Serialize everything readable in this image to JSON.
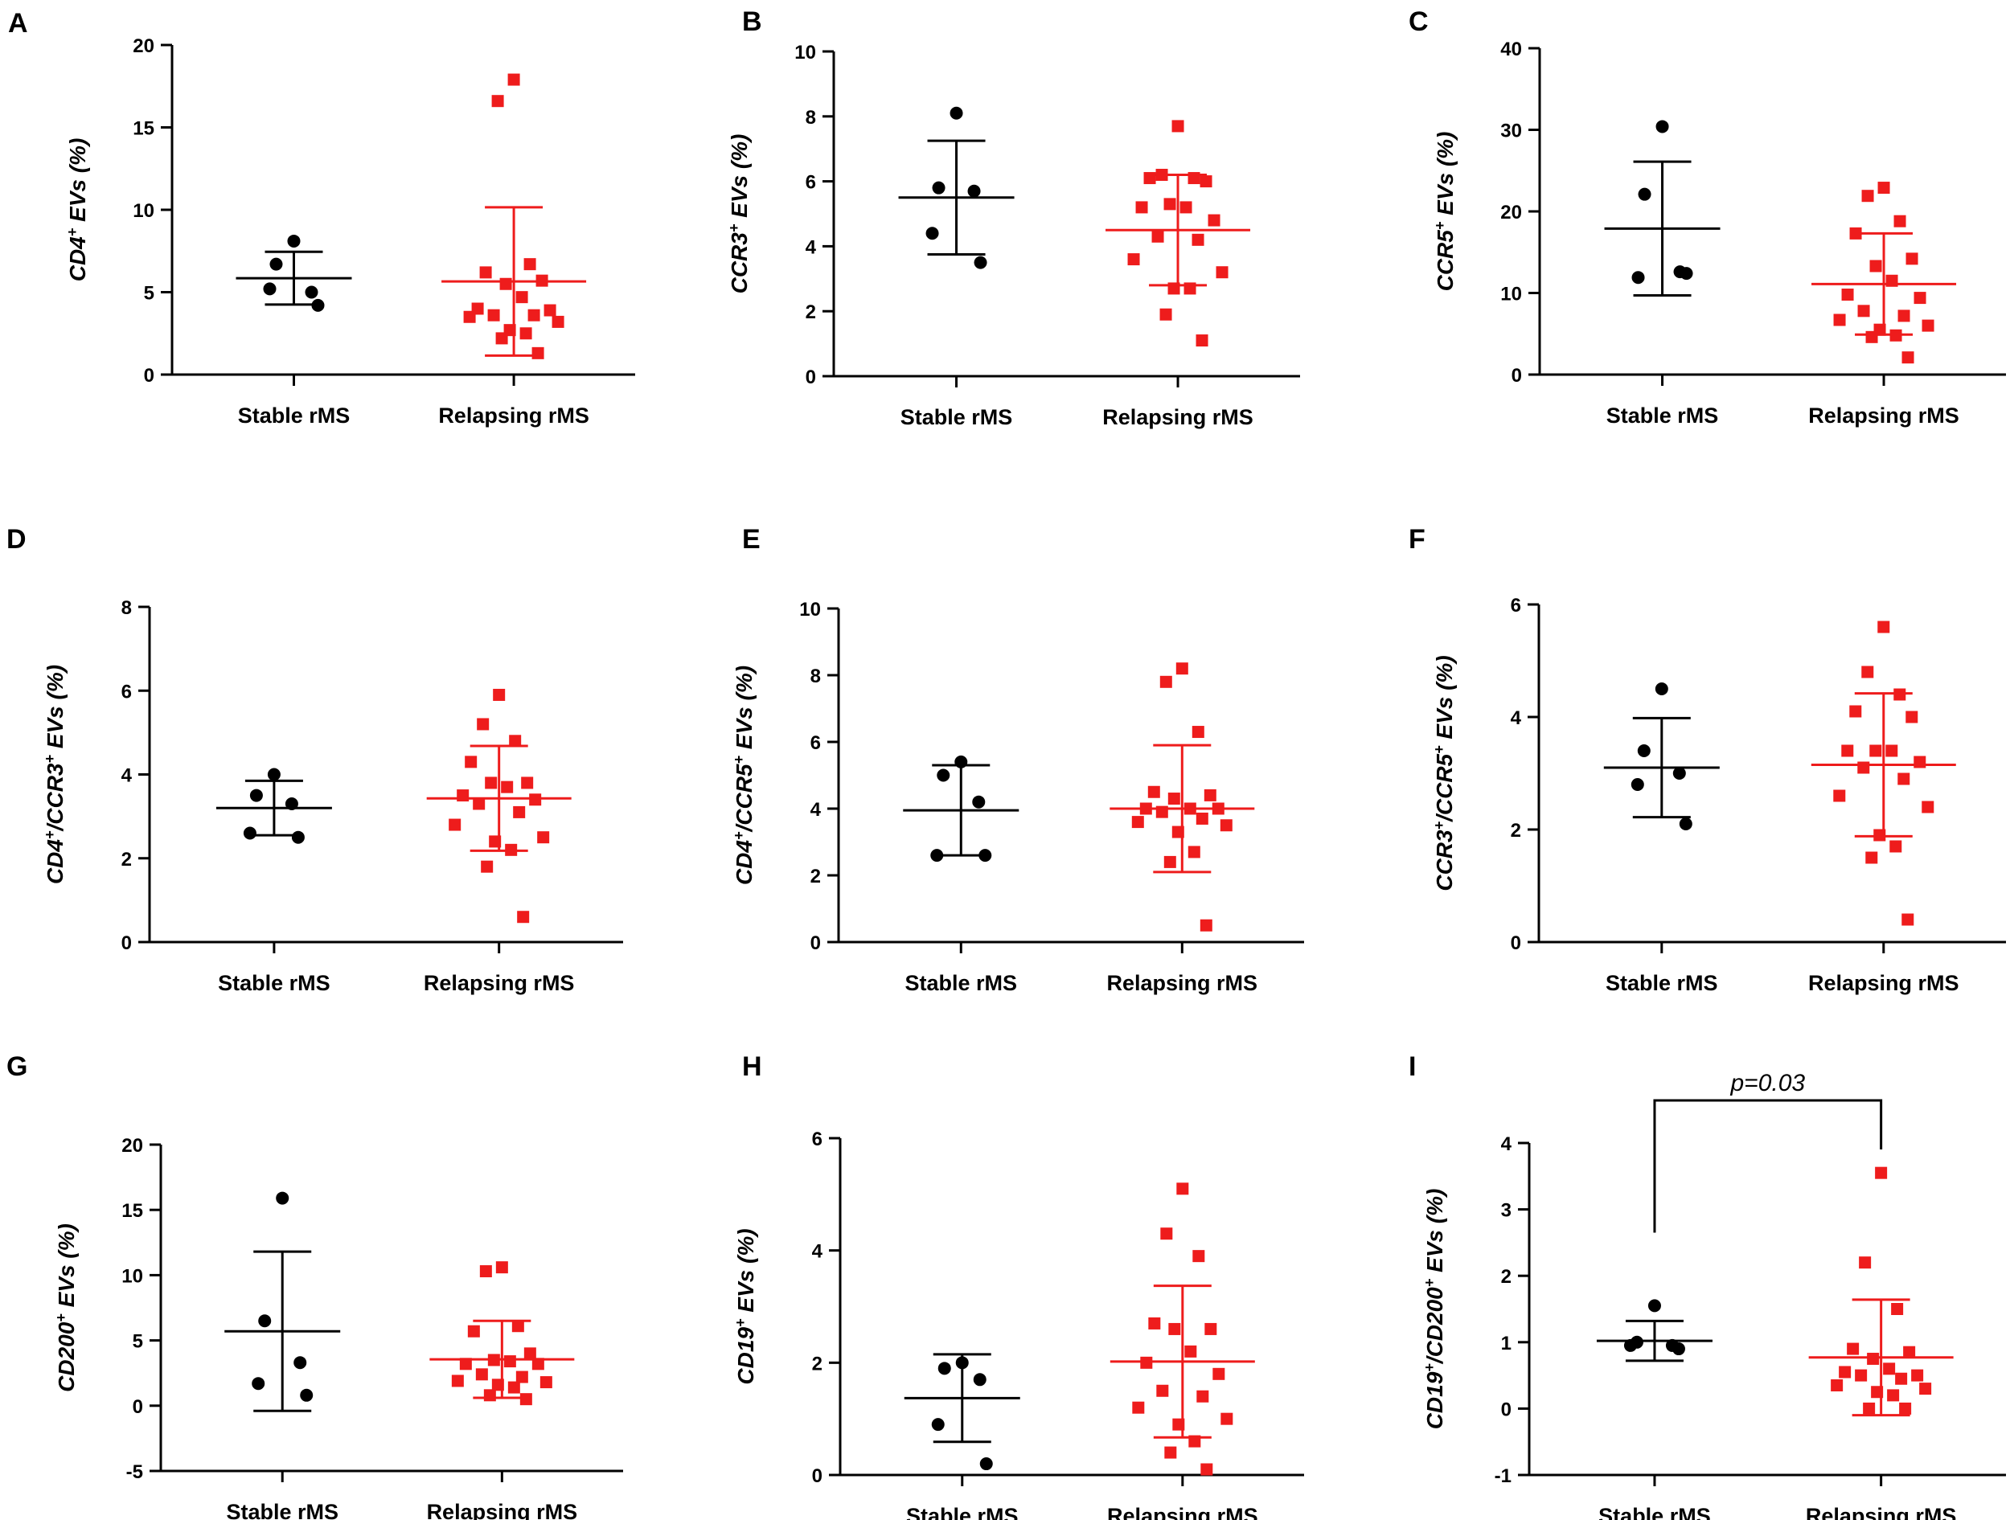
{
  "colors": {
    "stable": "#000000",
    "relapsing": "#ee1c1c",
    "axis": "#000000"
  },
  "chart_data": [
    {
      "panel": "A",
      "type": "scatter",
      "ylabel": [
        {
          "t": "CD4"
        },
        {
          "t": "+",
          "sup": true
        },
        {
          "t": " EVs (%)"
        }
      ],
      "ylim": [
        0,
        20
      ],
      "yticks": [
        0,
        5,
        10,
        15,
        20
      ],
      "categories": [
        "Stable rMS",
        "Relapsing rMS"
      ],
      "series": [
        {
          "name": "Stable rMS",
          "marker": "circle",
          "mean": 5.85,
          "sd": 1.6,
          "values": [
            8.1,
            6.7,
            5.0,
            5.2,
            4.2
          ]
        },
        {
          "name": "Relapsing rMS",
          "marker": "square",
          "mean": 5.65,
          "sd": 4.5,
          "values": [
            17.9,
            16.6,
            6.7,
            6.2,
            5.7,
            5.5,
            4.7,
            4.0,
            3.9,
            3.6,
            3.6,
            3.5,
            3.2,
            2.7,
            2.5,
            2.2,
            1.3
          ]
        }
      ]
    },
    {
      "panel": "B",
      "type": "scatter",
      "ylabel": [
        {
          "t": "CCR3"
        },
        {
          "t": "+",
          "sup": true
        },
        {
          "t": " EVs (%)"
        }
      ],
      "ylim": [
        0,
        10
      ],
      "yticks": [
        0,
        2,
        4,
        6,
        8,
        10
      ],
      "categories": [
        "Stable rMS",
        "Relapsing rMS"
      ],
      "series": [
        {
          "name": "Stable rMS",
          "marker": "circle",
          "mean": 5.5,
          "sd": 1.75,
          "values": [
            8.1,
            5.8,
            5.7,
            4.4,
            3.5
          ]
        },
        {
          "name": "Relapsing rMS",
          "marker": "square",
          "mean": 4.5,
          "sd": 1.7,
          "values": [
            7.7,
            6.2,
            6.1,
            6.1,
            6.0,
            5.3,
            5.2,
            5.2,
            4.8,
            4.3,
            4.2,
            3.6,
            3.2,
            2.7,
            2.7,
            1.9,
            1.1
          ]
        }
      ]
    },
    {
      "panel": "C",
      "type": "scatter",
      "ylabel": [
        {
          "t": "CCR5"
        },
        {
          "t": "+",
          "sup": true
        },
        {
          "t": " EVs (%)"
        }
      ],
      "ylim": [
        0,
        40
      ],
      "yticks": [
        0,
        10,
        20,
        30,
        40
      ],
      "categories": [
        "Stable rMS",
        "Relapsing rMS"
      ],
      "series": [
        {
          "name": "Stable rMS",
          "marker": "circle",
          "mean": 17.9,
          "sd": 8.2,
          "values": [
            30.4,
            22.1,
            12.6,
            11.9,
            12.4
          ]
        },
        {
          "name": "Relapsing rMS",
          "marker": "square",
          "mean": 11.1,
          "sd": 6.2,
          "values": [
            22.9,
            21.9,
            18.8,
            17.3,
            14.2,
            13.3,
            11.5,
            9.8,
            9.4,
            7.8,
            7.2,
            6.7,
            6.0,
            5.5,
            4.8,
            4.6,
            2.1
          ]
        }
      ]
    },
    {
      "panel": "D",
      "type": "scatter",
      "ylabel": [
        {
          "t": "CD4"
        },
        {
          "t": "+",
          "sup": true
        },
        {
          "t": "/CCR3"
        },
        {
          "t": "+",
          "sup": true
        },
        {
          "t": " EVs (%)"
        }
      ],
      "ylim": [
        0,
        8
      ],
      "yticks": [
        0,
        2,
        4,
        6,
        8
      ],
      "categories": [
        "Stable rMS",
        "Relapsing rMS"
      ],
      "series": [
        {
          "name": "Stable rMS",
          "marker": "circle",
          "mean": 3.2,
          "sd": 0.65,
          "values": [
            4.0,
            3.5,
            3.3,
            2.6,
            2.5
          ]
        },
        {
          "name": "Relapsing rMS",
          "marker": "square",
          "mean": 3.43,
          "sd": 1.25,
          "values": [
            5.9,
            5.2,
            4.8,
            4.3,
            3.8,
            3.8,
            3.7,
            3.5,
            3.4,
            3.3,
            3.1,
            2.8,
            2.5,
            2.4,
            2.2,
            1.8,
            0.6
          ]
        }
      ]
    },
    {
      "panel": "E",
      "type": "scatter",
      "ylabel": [
        {
          "t": "CD4"
        },
        {
          "t": "+",
          "sup": true
        },
        {
          "t": "/CCR5"
        },
        {
          "t": "+",
          "sup": true
        },
        {
          "t": " EVs (%)"
        }
      ],
      "ylim": [
        0,
        10
      ],
      "yticks": [
        0,
        2,
        4,
        6,
        8,
        10
      ],
      "categories": [
        "Stable rMS",
        "Relapsing rMS"
      ],
      "series": [
        {
          "name": "Stable rMS",
          "marker": "circle",
          "mean": 3.95,
          "sd": 1.35,
          "values": [
            5.4,
            5.0,
            4.2,
            2.6,
            2.6
          ]
        },
        {
          "name": "Relapsing rMS",
          "marker": "square",
          "mean": 4.0,
          "sd": 1.9,
          "values": [
            8.2,
            7.8,
            6.3,
            4.5,
            4.4,
            4.3,
            4.0,
            4.0,
            4.0,
            3.9,
            3.7,
            3.6,
            3.5,
            3.3,
            2.7,
            2.4,
            0.5
          ]
        }
      ]
    },
    {
      "panel": "F",
      "type": "scatter",
      "ylabel": [
        {
          "t": "CCR3"
        },
        {
          "t": "+",
          "sup": true
        },
        {
          "t": "/CCR5"
        },
        {
          "t": "+",
          "sup": true
        },
        {
          "t": " EVs (%)"
        }
      ],
      "ylim": [
        0,
        6
      ],
      "yticks": [
        0,
        2,
        4,
        6
      ],
      "categories": [
        "Stable rMS",
        "Relapsing rMS"
      ],
      "series": [
        {
          "name": "Stable rMS",
          "marker": "circle",
          "mean": 3.1,
          "sd": 0.88,
          "values": [
            4.5,
            3.4,
            3.0,
            2.8,
            2.1
          ]
        },
        {
          "name": "Relapsing rMS",
          "marker": "square",
          "mean": 3.15,
          "sd": 1.27,
          "values": [
            5.6,
            4.8,
            4.4,
            4.1,
            4.0,
            3.4,
            3.4,
            3.4,
            3.2,
            3.1,
            2.9,
            2.6,
            2.4,
            1.9,
            1.7,
            1.5,
            0.4
          ]
        }
      ]
    },
    {
      "panel": "G",
      "type": "scatter",
      "ylabel": [
        {
          "t": "CD200"
        },
        {
          "t": "+",
          "sup": true
        },
        {
          "t": " EVs (%)"
        }
      ],
      "ylim": [
        -5,
        20
      ],
      "yticks": [
        -5,
        0,
        5,
        10,
        15,
        20
      ],
      "categories": [
        "Stable rMS",
        "Relapsing rMS"
      ],
      "series": [
        {
          "name": "Stable rMS",
          "marker": "circle",
          "mean": 5.7,
          "sd": 6.1,
          "values": [
            15.9,
            6.5,
            3.3,
            1.7,
            0.8
          ]
        },
        {
          "name": "Relapsing rMS",
          "marker": "square",
          "mean": 3.55,
          "sd": 2.95,
          "values": [
            10.6,
            10.3,
            6.1,
            5.7,
            4.0,
            3.5,
            3.4,
            3.2,
            3.2,
            2.4,
            2.2,
            1.9,
            1.8,
            1.6,
            1.4,
            0.8,
            0.5
          ]
        }
      ]
    },
    {
      "panel": "H",
      "type": "scatter",
      "ylabel": [
        {
          "t": "CD19"
        },
        {
          "t": "+",
          "sup": true
        },
        {
          "t": " EVs (%)"
        }
      ],
      "ylim": [
        0,
        6
      ],
      "yticks": [
        0,
        2,
        4,
        6
      ],
      "categories": [
        "Stable rMS",
        "Relapsing rMS"
      ],
      "series": [
        {
          "name": "Stable rMS",
          "marker": "circle",
          "mean": 1.37,
          "sd": 0.78,
          "values": [
            2.0,
            1.9,
            1.7,
            0.9,
            0.2
          ]
        },
        {
          "name": "Relapsing rMS",
          "marker": "square",
          "mean": 2.02,
          "sd": 1.35,
          "values": [
            5.1,
            4.3,
            3.9,
            2.7,
            2.6,
            2.6,
            2.2,
            2.0,
            1.8,
            1.5,
            1.4,
            1.2,
            1.0,
            0.9,
            0.6,
            0.4,
            0.1
          ]
        }
      ]
    },
    {
      "panel": "I",
      "type": "scatter",
      "ylabel": [
        {
          "t": "CD19"
        },
        {
          "t": "+",
          "sup": true
        },
        {
          "t": "/CD200"
        },
        {
          "t": "+",
          "sup": true
        },
        {
          "t": " EVs (%)"
        }
      ],
      "ylim": [
        -1,
        4
      ],
      "yticks": [
        -1,
        0,
        1,
        2,
        3,
        4
      ],
      "categories": [
        "Stable rMS",
        "Relapsing rMS"
      ],
      "series": [
        {
          "name": "Stable rMS",
          "marker": "circle",
          "mean": 1.02,
          "sd": 0.3,
          "values": [
            1.55,
            1.0,
            0.95,
            0.95,
            0.9
          ]
        },
        {
          "name": "Relapsing rMS",
          "marker": "square",
          "mean": 0.77,
          "sd": 0.87,
          "values": [
            3.55,
            2.2,
            1.5,
            0.9,
            0.85,
            0.75,
            0.6,
            0.55,
            0.5,
            0.5,
            0.45,
            0.35,
            0.3,
            0.25,
            0.2,
            0.0,
            0.0
          ]
        }
      ],
      "annotation": {
        "text": "p=0.03"
      }
    }
  ]
}
